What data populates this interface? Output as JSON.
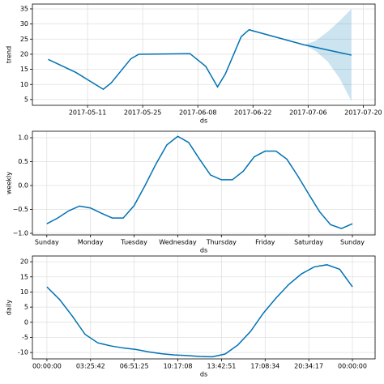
{
  "chart_data": [
    {
      "type": "line",
      "ylabel": "trend",
      "xlabel": "ds",
      "color": "#0072B2",
      "grid": true,
      "x": [
        "2017-05-01",
        "2017-05-08",
        "2017-05-15",
        "2017-05-17",
        "2017-05-22",
        "2017-05-24",
        "2017-06-06",
        "2017-06-10",
        "2017-06-13",
        "2017-06-15",
        "2017-06-19",
        "2017-06-21",
        "2017-07-05",
        "2017-07-08",
        "2017-07-11",
        "2017-07-14",
        "2017-07-17"
      ],
      "values": [
        18.3,
        14.0,
        8.4,
        10.5,
        18.5,
        20.0,
        20.2,
        16.0,
        9.2,
        13.5,
        25.8,
        28.1,
        23.1,
        22.25,
        21.4,
        20.55,
        19.7
      ],
      "interval": {
        "lower": [
          null,
          null,
          null,
          null,
          null,
          null,
          null,
          null,
          null,
          null,
          null,
          null,
          23.1,
          21.0,
          17.5,
          12.0,
          4.5
        ],
        "upper": [
          null,
          null,
          null,
          null,
          null,
          null,
          null,
          null,
          null,
          null,
          null,
          null,
          23.1,
          24.5,
          27.5,
          31.0,
          35.0
        ]
      },
      "xlim": [
        "2017-04-27",
        "2017-07-23"
      ],
      "xticks": [
        "2017-05-11",
        "2017-05-25",
        "2017-06-08",
        "2017-06-22",
        "2017-07-06",
        "2017-07-20"
      ],
      "ylim": [
        3.1,
        36.6
      ],
      "yticks": [
        5,
        10,
        15,
        20,
        25,
        30,
        35
      ]
    },
    {
      "type": "line",
      "ylabel": "weekly",
      "xlabel": "ds",
      "color": "#0072B2",
      "grid": true,
      "x": [
        0,
        0.25,
        0.5,
        0.75,
        1,
        1.25,
        1.5,
        1.75,
        2,
        2.25,
        2.5,
        2.75,
        3,
        3.25,
        3.5,
        3.75,
        4,
        4.25,
        4.5,
        4.75,
        5,
        5.25,
        5.5,
        5.75,
        6,
        6.25,
        6.5,
        6.75,
        7
      ],
      "values": [
        -0.8,
        -0.68,
        -0.53,
        -0.43,
        -0.47,
        -0.58,
        -0.68,
        -0.68,
        -0.42,
        0.0,
        0.45,
        0.85,
        1.03,
        0.9,
        0.55,
        0.22,
        0.12,
        0.12,
        0.3,
        0.6,
        0.72,
        0.72,
        0.55,
        0.2,
        -0.18,
        -0.55,
        -0.82,
        -0.9,
        -0.8
      ],
      "xlim": [
        -0.33,
        7.52
      ],
      "xticks": [
        {
          "value": 0,
          "label": "Sunday"
        },
        {
          "value": 1,
          "label": "Monday"
        },
        {
          "value": 2,
          "label": "Tuesday"
        },
        {
          "value": 3,
          "label": "Wednesday"
        },
        {
          "value": 4,
          "label": "Thursday"
        },
        {
          "value": 5,
          "label": "Friday"
        },
        {
          "value": 6,
          "label": "Saturday"
        },
        {
          "value": 7,
          "label": "Sunday"
        }
      ],
      "ylim": [
        -1.034,
        1.136
      ],
      "yticks": [
        {
          "value": -1,
          "label": "−1.0"
        },
        {
          "value": -0.5,
          "label": "−0.5"
        },
        {
          "value": 0,
          "label": "0.0"
        },
        {
          "value": 0.5,
          "label": "0.5"
        },
        {
          "value": 1,
          "label": "1.0"
        }
      ]
    },
    {
      "type": "line",
      "ylabel": "daily",
      "xlabel": "ds",
      "color": "#0072B2",
      "grid": true,
      "x": [
        0,
        1,
        2,
        3,
        4,
        5,
        6,
        7,
        8,
        9,
        10,
        11,
        12,
        13,
        14,
        15,
        16,
        17,
        18,
        19,
        20,
        21,
        22,
        23,
        24
      ],
      "values": [
        11.7,
        7.5,
        2.0,
        -4.0,
        -6.8,
        -7.8,
        -8.5,
        -9.0,
        -9.8,
        -10.4,
        -10.8,
        -11.0,
        -11.3,
        -11.4,
        -10.5,
        -7.5,
        -3.0,
        3.0,
        8.0,
        12.5,
        16.0,
        18.3,
        19.0,
        17.5,
        11.7
      ],
      "xlim": [
        -1.14,
        25.78
      ],
      "xticks": [
        {
          "value": 0,
          "label": "00:00:00"
        },
        {
          "value": 3.4286,
          "label": "03:25:42"
        },
        {
          "value": 6.8571,
          "label": "06:51:25"
        },
        {
          "value": 10.2857,
          "label": "10:17:08"
        },
        {
          "value": 13.7143,
          "label": "13:42:51"
        },
        {
          "value": 17.1429,
          "label": "17:08:34"
        },
        {
          "value": 20.5714,
          "label": "20:34:17"
        },
        {
          "value": 24,
          "label": "00:00:00"
        }
      ],
      "ylim": [
        -12.1,
        21.9
      ],
      "yticks": [
        -10,
        -5,
        0,
        5,
        10,
        15,
        20
      ]
    }
  ]
}
